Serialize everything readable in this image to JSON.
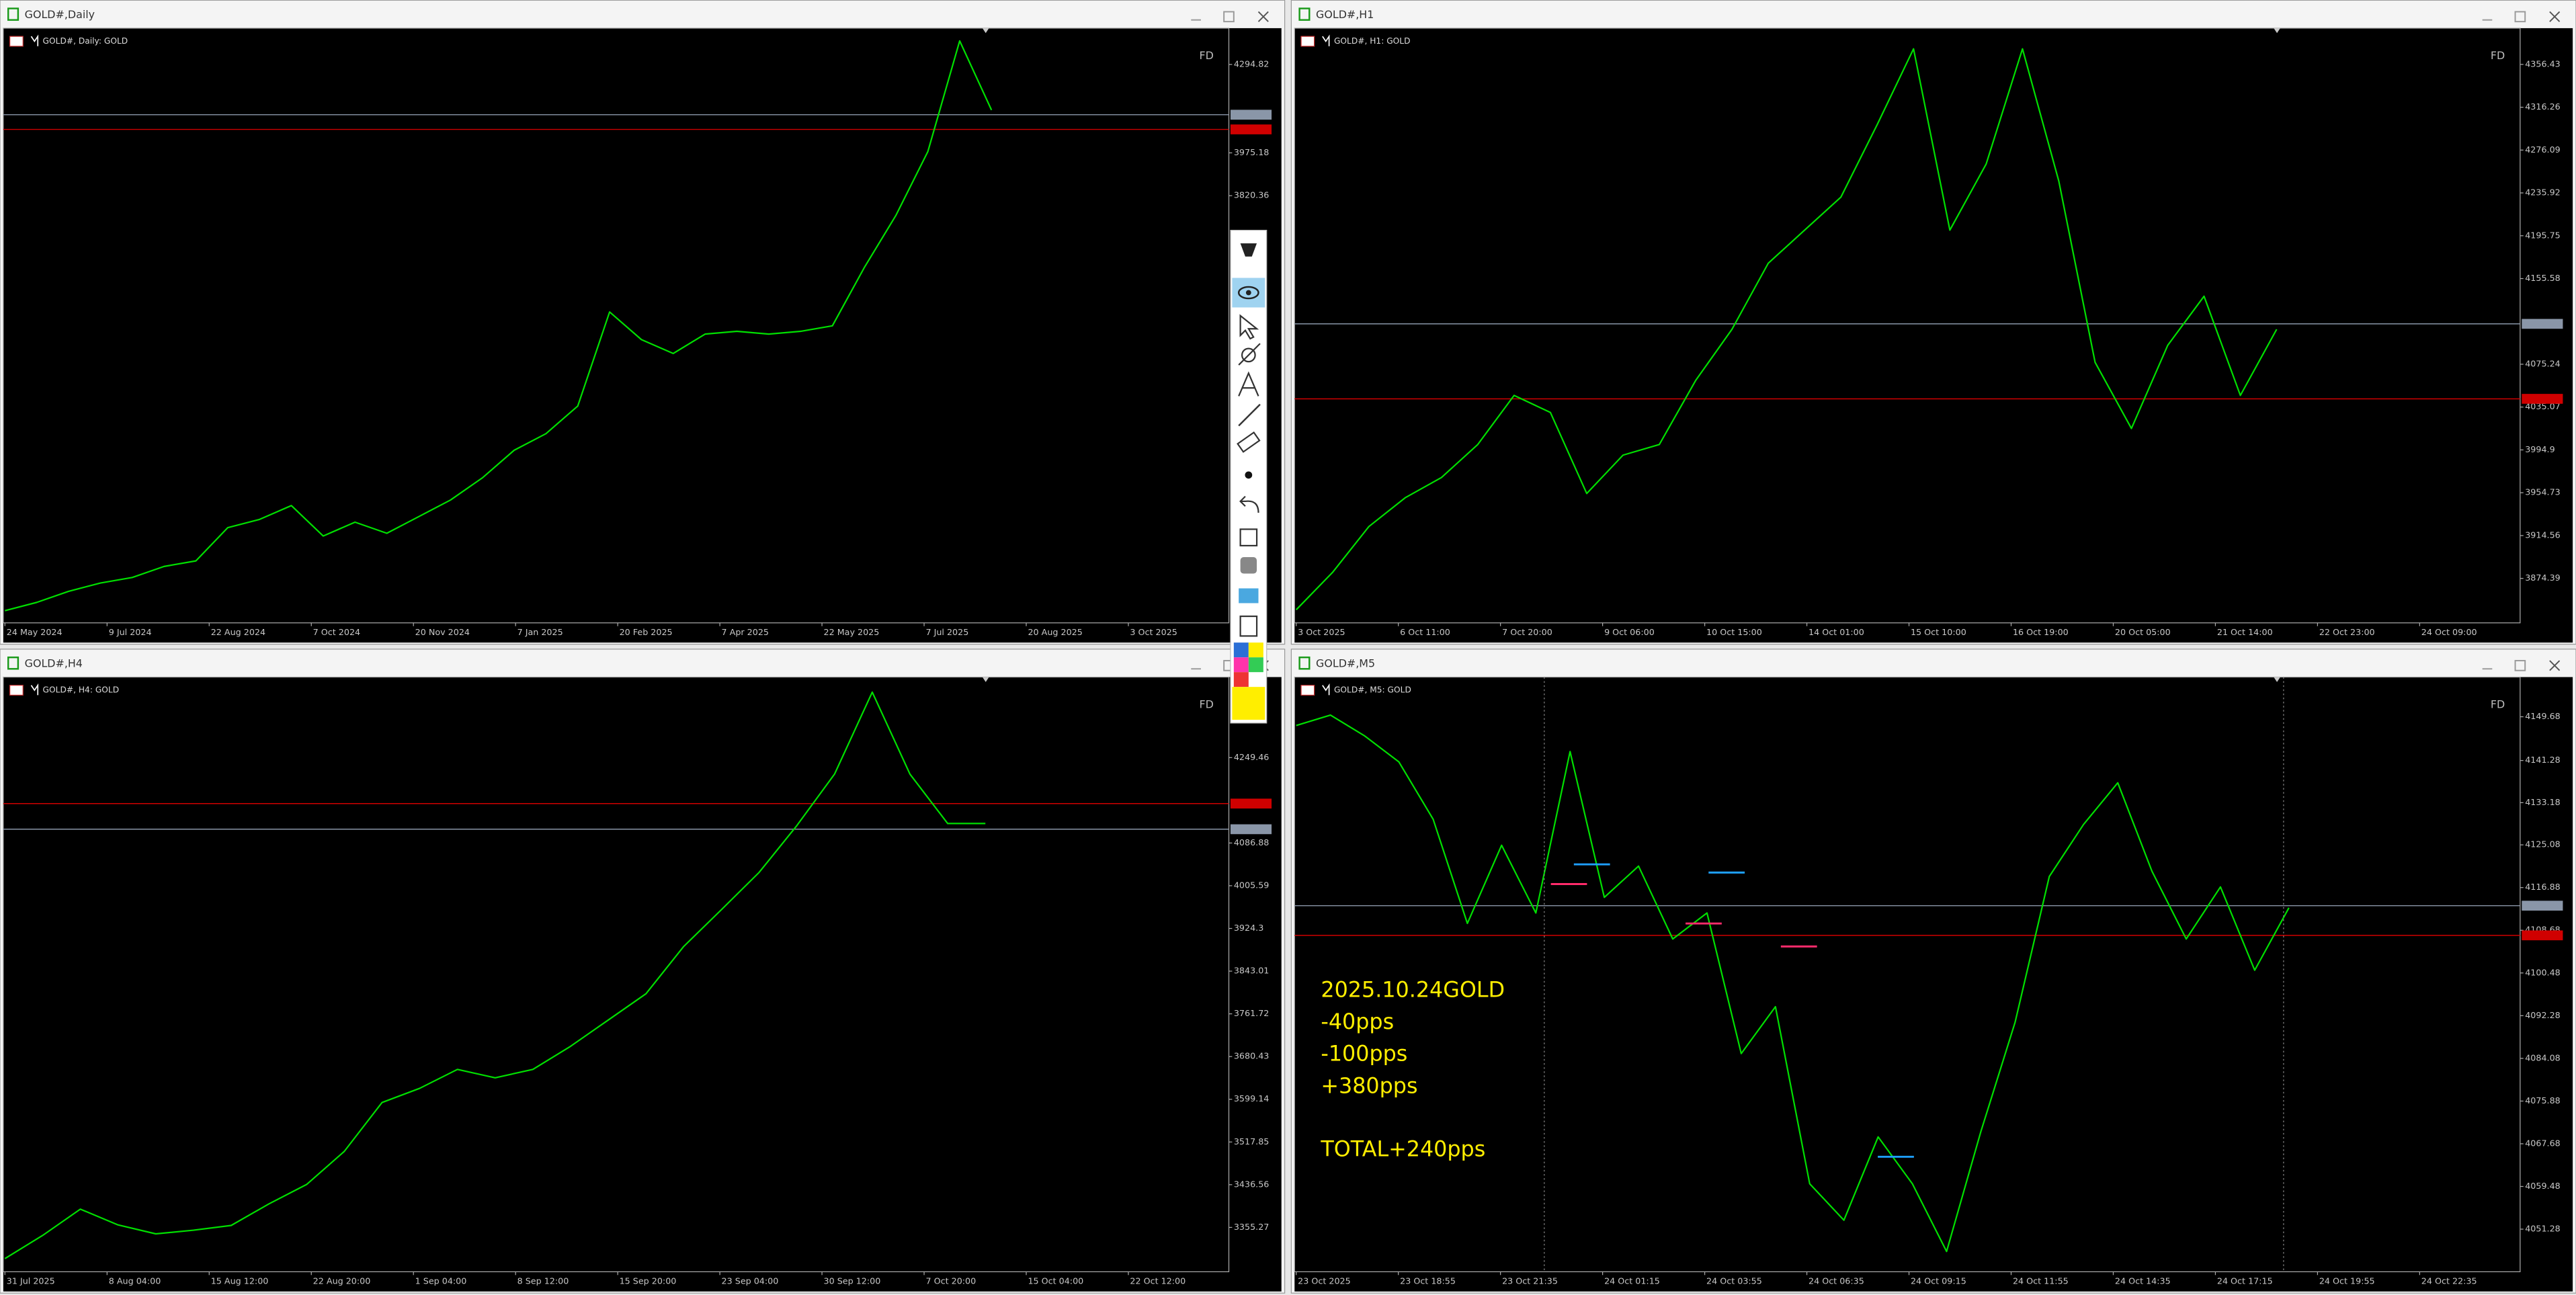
{
  "windows": [
    {
      "title": "GOLD#,Daily",
      "label": "GOLD#, Daily:  GOLD",
      "corner": "FD",
      "ylim": [
        2276,
        4426
      ],
      "yticks": [
        4294.82,
        3975.18,
        3820.36
      ],
      "xlabels": [
        "24 May 2024",
        "9 Jul 2024",
        "22 Aug 2024",
        "7 Oct 2024",
        "20 Nov 2024",
        "7 Jan 2025",
        "20 Feb 2025",
        "7 Apr 2025",
        "22 May 2025",
        "7 Jul 2025",
        "20 Aug 2025",
        "3 Oct 2025"
      ],
      "prices": [
        2320,
        2350,
        2390,
        2420,
        2440,
        2480,
        2500,
        2620,
        2650,
        2700,
        2590,
        2640,
        2600,
        2660,
        2720,
        2800,
        2900,
        2960,
        3060,
        3400,
        3300,
        3250,
        3320,
        3330,
        3320,
        3330,
        3350,
        3560,
        3750,
        3980,
        4380,
        4130
      ],
      "levels": [
        {
          "value": 4113.11,
          "color": "#8a96a8"
        },
        {
          "value": 4060,
          "color": "#d00000"
        }
      ]
    },
    {
      "title": "GOLD#,H1",
      "label": "GOLD#, H1:  GOLD",
      "corner": "FD",
      "ylim": [
        3832.7,
        4390.4
      ],
      "yticks": [
        4356.43,
        4316.26,
        4276.09,
        4235.92,
        4195.75,
        4155.58,
        4075.24,
        4035.07,
        3994.9,
        3954.73,
        3914.56,
        3874.39
      ],
      "xlabels": [
        "3 Oct 2025",
        "6 Oct 11:00",
        "7 Oct 20:00",
        "9 Oct 06:00",
        "10 Oct 15:00",
        "14 Oct 01:00",
        "15 Oct 10:00",
        "16 Oct 19:00",
        "20 Oct 05:00",
        "21 Oct 14:00",
        "22 Oct 23:00",
        "24 Oct 09:00"
      ],
      "prices": [
        3845,
        3880,
        3923,
        3950,
        3969,
        4000,
        4046,
        4030,
        3954,
        3990,
        4000,
        4060,
        4108,
        4170,
        4201,
        4232,
        4300,
        4371,
        4201,
        4263,
        4371,
        4247,
        4077,
        4015,
        4093,
        4139,
        4046,
        4108
      ],
      "levels": [
        {
          "value": 4113.11,
          "color": "#8a96a8"
        },
        {
          "value": 4042.8,
          "color": "#d00000"
        }
      ]
    },
    {
      "title": "GOLD#,H4",
      "label": "GOLD#, H4:  GOLD",
      "corner": "FD",
      "ylim": [
        3270.85,
        4402.7
      ],
      "yticks": [
        4249.46,
        4086.88,
        4005.59,
        3924.3,
        3843.01,
        3761.72,
        3680.43,
        3599.14,
        3517.85,
        3436.56,
        3355.27
      ],
      "xlabels": [
        "31 Jul 2025",
        "8 Aug 04:00",
        "15 Aug 12:00",
        "22 Aug 20:00",
        "1 Sep 04:00",
        "8 Sep 12:00",
        "15 Sep 20:00",
        "23 Sep 04:00",
        "30 Sep 12:00",
        "7 Oct 20:00",
        "15 Oct 04:00",
        "22 Oct 12:00"
      ],
      "prices": [
        3296,
        3340,
        3390,
        3360,
        3343,
        3350,
        3359,
        3400,
        3437,
        3500,
        3593,
        3620,
        3656,
        3640,
        3656,
        3700,
        3750,
        3800,
        3890,
        3960,
        4031,
        4120,
        4218,
        4374,
        4218,
        4124,
        4124
      ],
      "levels": [
        {
          "value": 4161.9,
          "color": "#d00000"
        },
        {
          "value": 4113.11,
          "color": "#8a96a8"
        }
      ]
    },
    {
      "title": "GOLD#,M5",
      "label": "GOLD#, M5:  GOLD",
      "corner": "FD",
      "ylim": [
        4043.1,
        4157.3
      ],
      "yticks": [
        4149.68,
        4141.28,
        4133.18,
        4125.08,
        4116.88,
        4108.68,
        4100.48,
        4092.28,
        4084.08,
        4075.88,
        4067.68,
        4059.48,
        4051.28
      ],
      "xlabels": [
        "23 Oct 2025",
        "23 Oct 18:55",
        "23 Oct 21:35",
        "24 Oct 01:15",
        "24 Oct 03:55",
        "24 Oct 06:35",
        "24 Oct 09:15",
        "24 Oct 11:55",
        "24 Oct 14:35",
        "24 Oct 17:15",
        "24 Oct 19:55",
        "24 Oct 22:35"
      ],
      "prices": [
        4148,
        4150,
        4146,
        4141,
        4130,
        4110,
        4125,
        4112,
        4143,
        4115,
        4121,
        4107,
        4112,
        4085,
        4094,
        4060,
        4053,
        4069,
        4060,
        4047,
        4070,
        4091,
        4119,
        4129,
        4137,
        4120,
        4107,
        4117,
        4101,
        4113
      ],
      "levels": [
        {
          "value": 4113.4,
          "color": "#8a96a8"
        },
        {
          "value": 4107.7,
          "color": "#d00000"
        }
      ]
    }
  ],
  "annotation": {
    "lines": [
      "2025.10.24GOLD",
      "-40pps",
      "-100pps",
      "+380pps"
    ],
    "total": "TOTAL+240pps"
  }
}
